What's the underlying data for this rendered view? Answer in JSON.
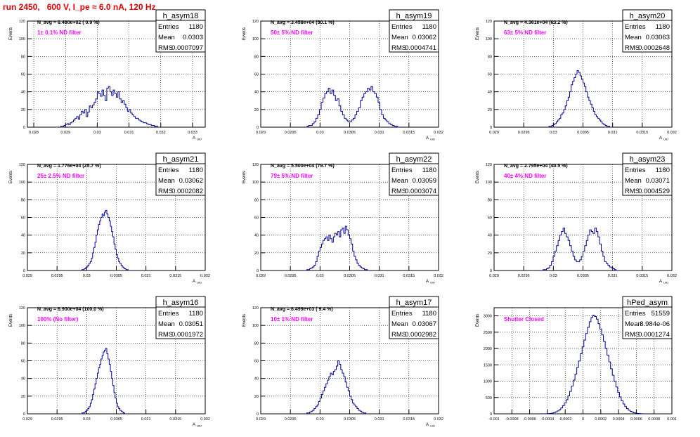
{
  "page": {
    "title": "run 2450,   600 V, I_pe ≈ 6.0 nA, 120 Hz",
    "title_color": "#dd0000",
    "annotation_color": "#ff00ff",
    "histogram_color": "#000099"
  },
  "chart_data": [
    {
      "type": "histogram",
      "name": "h_asym18",
      "ylabel": "Events",
      "xlabel_main": "A",
      "xlabel_sub": "UID",
      "ylim": [
        0,
        120
      ],
      "yticks": [
        "0",
        "20",
        "40",
        "60",
        "80",
        "100",
        "120"
      ],
      "xlim": [
        0.0278,
        0.0334
      ],
      "xticks": [
        "0.028",
        "0.029",
        "0.03",
        "0.031",
        "0.032",
        "0.033"
      ],
      "navg": "N_avg = 6.480e+02 ( 0.9 %)",
      "filter": "1± 0.1% ND filter",
      "stats": [
        [
          "Entries",
          "1180"
        ],
        [
          "Mean",
          "0.0303"
        ],
        [
          "RMS",
          "0.0007097"
        ]
      ],
      "bin_start": 0.0288,
      "bin_width": 5e-05,
      "counts": [
        0,
        1,
        1,
        2,
        3,
        4,
        3,
        5,
        6,
        8,
        10,
        12,
        9,
        14,
        18,
        16,
        20,
        12,
        17,
        24,
        22,
        25,
        28,
        32,
        40,
        38,
        35,
        42,
        36,
        30,
        44,
        46,
        40,
        36,
        42,
        38,
        34,
        40,
        32,
        28,
        30,
        26,
        22,
        18,
        20,
        16,
        14,
        12,
        10,
        10,
        8,
        7,
        6,
        5,
        5,
        4,
        3,
        3,
        2,
        2,
        1,
        1,
        0
      ]
    },
    {
      "type": "histogram",
      "name": "h_asym19",
      "ylabel": "Events",
      "xlabel_main": "A",
      "xlabel_sub": "UID",
      "ylim": [
        0,
        120
      ],
      "yticks": [
        "0",
        "20",
        "40",
        "60",
        "80",
        "100",
        "120"
      ],
      "xlim": [
        0.029,
        0.032
      ],
      "xticks": [
        "0.029",
        "0.0295",
        "0.03",
        "0.0305",
        "0.031",
        "0.0315",
        "0.032"
      ],
      "navg": "N_avg = 3.458e+04 (50.1 %)",
      "filter": "50± 5% ND filter",
      "stats": [
        [
          "Entries",
          "1180"
        ],
        [
          "Mean",
          "0.03062"
        ],
        [
          "RMS",
          "0.0004741"
        ]
      ],
      "bin_start": 0.02975,
      "bin_width": 3e-05,
      "counts": [
        0,
        1,
        2,
        2,
        4,
        6,
        10,
        14,
        20,
        28,
        33,
        38,
        40,
        44,
        38,
        42,
        36,
        30,
        32,
        24,
        18,
        14,
        10,
        8,
        6,
        6,
        8,
        10,
        14,
        18,
        22,
        30,
        34,
        38,
        40,
        44,
        42,
        46,
        40,
        38,
        34,
        28,
        20,
        14,
        10,
        8,
        6,
        4,
        3,
        2,
        1,
        1,
        0
      ]
    },
    {
      "type": "histogram",
      "name": "h_asym20",
      "ylabel": "Events",
      "xlabel_main": "A",
      "xlabel_sub": "UID",
      "ylim": [
        0,
        120
      ],
      "yticks": [
        "0",
        "20",
        "40",
        "60",
        "80",
        "100",
        "120"
      ],
      "xlim": [
        0.029,
        0.032
      ],
      "xticks": [
        "0.029",
        "0.0295",
        "0.03",
        "0.0305",
        "0.031",
        "0.0315",
        "0.032"
      ],
      "navg": "N_avg = 4.361e+04 (63.2 %)",
      "filter": "63± 5% ND filter",
      "stats": [
        [
          "Entries",
          "1180"
        ],
        [
          "Mean",
          "0.03063"
        ],
        [
          "RMS",
          "0.0002648"
        ]
      ],
      "bin_start": 0.0299,
      "bin_width": 2.5e-05,
      "counts": [
        0,
        1,
        1,
        2,
        3,
        4,
        6,
        8,
        10,
        14,
        16,
        20,
        24,
        30,
        34,
        40,
        48,
        52,
        56,
        60,
        64,
        62,
        58,
        54,
        50,
        46,
        40,
        34,
        30,
        26,
        22,
        18,
        14,
        12,
        10,
        8,
        6,
        4,
        3,
        2,
        1,
        1,
        0
      ]
    },
    {
      "type": "histogram",
      "name": "h_asym21",
      "ylabel": "Events",
      "xlabel_main": "A",
      "xlabel_sub": "UID",
      "ylim": [
        0,
        120
      ],
      "yticks": [
        "0",
        "20",
        "40",
        "60",
        "80",
        "100",
        "120"
      ],
      "xlim": [
        0.029,
        0.032
      ],
      "xticks": [
        "0.029",
        "0.0295",
        "0.03",
        "0.0305",
        "0.031",
        "0.0315",
        "0.032"
      ],
      "navg": "N_avg = 1.776e+04 (25.7 %)",
      "filter": "25± 2.5% ND filter",
      "stats": [
        [
          "Entries",
          "1180"
        ],
        [
          "Mean",
          "0.03062"
        ],
        [
          "RMS",
          "0.0002082"
        ]
      ],
      "bin_start": 0.0299,
      "bin_width": 2e-05,
      "counts": [
        0,
        1,
        1,
        2,
        3,
        4,
        6,
        8,
        10,
        14,
        20,
        26,
        32,
        40,
        46,
        52,
        56,
        60,
        64,
        62,
        66,
        68,
        64,
        60,
        56,
        50,
        44,
        38,
        30,
        24,
        18,
        14,
        10,
        8,
        6,
        4,
        3,
        2,
        1,
        1,
        0
      ]
    },
    {
      "type": "histogram",
      "name": "h_asym22",
      "ylabel": "Events",
      "xlabel_main": "A",
      "xlabel_sub": "UID",
      "ylim": [
        0,
        120
      ],
      "yticks": [
        "0",
        "20",
        "40",
        "60",
        "80",
        "100",
        "120"
      ],
      "xlim": [
        0.029,
        0.032
      ],
      "xticks": [
        "0.029",
        "0.0295",
        "0.03",
        "0.0305",
        "0.031",
        "0.0315",
        "0.032"
      ],
      "navg": "N_avg = 5.500e+04 (79.7 %)",
      "filter": "79± 5% ND filter",
      "stats": [
        [
          "Entries",
          "1180"
        ],
        [
          "Mean",
          "0.03059"
        ],
        [
          "RMS",
          "0.0003074"
        ]
      ],
      "bin_start": 0.02975,
      "bin_width": 2.5e-05,
      "counts": [
        0,
        1,
        1,
        2,
        3,
        4,
        6,
        10,
        16,
        22,
        26,
        30,
        34,
        36,
        38,
        34,
        40,
        36,
        32,
        38,
        42,
        40,
        44,
        38,
        46,
        48,
        42,
        50,
        46,
        40,
        36,
        30,
        22,
        16,
        12,
        8,
        6,
        4,
        3,
        2,
        1,
        1,
        0
      ]
    },
    {
      "type": "histogram",
      "name": "h_asym23",
      "ylabel": "Events",
      "xlabel_main": "A",
      "xlabel_sub": "UID",
      "ylim": [
        0,
        120
      ],
      "yticks": [
        "0",
        "20",
        "40",
        "60",
        "80",
        "100",
        "120"
      ],
      "xlim": [
        0.029,
        0.032
      ],
      "xticks": [
        "0.029",
        "0.0295",
        "0.03",
        "0.0305",
        "0.031",
        "0.0315",
        "0.032"
      ],
      "navg": "N_avg = 2.795e+04 (40.5 %)",
      "filter": "40± 4% ND filter",
      "stats": [
        [
          "Entries",
          "1180"
        ],
        [
          "Mean",
          "0.03071"
        ],
        [
          "RMS",
          "0.0004529"
        ]
      ],
      "bin_start": 0.0298,
      "bin_width": 2.8e-05,
      "counts": [
        0,
        1,
        1,
        2,
        3,
        6,
        10,
        16,
        22,
        28,
        34,
        40,
        44,
        48,
        42,
        38,
        34,
        28,
        22,
        16,
        12,
        10,
        10,
        12,
        16,
        22,
        28,
        34,
        40,
        46,
        44,
        42,
        48,
        44,
        38,
        30,
        22,
        16,
        10,
        8,
        6,
        4,
        3,
        2,
        1,
        0
      ]
    },
    {
      "type": "histogram",
      "name": "h_asym16",
      "ylabel": "Events",
      "xlabel_main": "A",
      "xlabel_sub": "UID",
      "ylim": [
        0,
        120
      ],
      "yticks": [
        "0",
        "20",
        "40",
        "60",
        "80",
        "100",
        "120"
      ],
      "xlim": [
        0.029,
        0.032
      ],
      "xticks": [
        "0.029",
        "0.0295",
        "0.03",
        "0.0305",
        "0.031",
        "0.0315",
        "0.032"
      ],
      "navg": "N_avg = 6.900e+04 (100.0 %)",
      "filter": "100% (No filter)",
      "stats": [
        [
          "Entries",
          "1180"
        ],
        [
          "Mean",
          "0.03051"
        ],
        [
          "RMS",
          "0.0001972"
        ]
      ],
      "bin_start": 0.0299,
      "bin_width": 2e-05,
      "counts": [
        0,
        1,
        1,
        2,
        3,
        4,
        6,
        8,
        12,
        16,
        22,
        28,
        34,
        40,
        46,
        52,
        56,
        62,
        66,
        70,
        72,
        74,
        68,
        62,
        56,
        48,
        40,
        32,
        24,
        18,
        12,
        8,
        6,
        4,
        3,
        2,
        1,
        0
      ]
    },
    {
      "type": "histogram",
      "name": "h_asym17",
      "ylabel": "Events",
      "xlabel_main": "A",
      "xlabel_sub": "UID",
      "ylim": [
        0,
        120
      ],
      "yticks": [
        "0",
        "20",
        "40",
        "60",
        "80",
        "100",
        "120"
      ],
      "xlim": [
        0.029,
        0.032
      ],
      "xticks": [
        "0.029",
        "0.0295",
        "0.03",
        "0.0305",
        "0.031",
        "0.0315",
        "0.032"
      ],
      "navg": "N_avg = 6.499e+03 ( 9.4 %)",
      "filter": "10± 1% ND filter",
      "stats": [
        [
          "Entries",
          "1180"
        ],
        [
          "Mean",
          "0.03067"
        ],
        [
          "RMS",
          "0.0002982"
        ]
      ],
      "bin_start": 0.02975,
      "bin_width": 2.5e-05,
      "counts": [
        0,
        1,
        1,
        2,
        3,
        4,
        6,
        8,
        10,
        14,
        18,
        22,
        26,
        30,
        34,
        38,
        42,
        46,
        44,
        48,
        50,
        54,
        60,
        56,
        50,
        46,
        42,
        36,
        30,
        26,
        20,
        16,
        12,
        10,
        8,
        6,
        4,
        3,
        2,
        1,
        1,
        0
      ]
    },
    {
      "type": "histogram",
      "name": "hPed_asym",
      "ylabel": "Events",
      "xlabel_main": "",
      "xlabel_sub": "",
      "ylim": [
        0,
        3250
      ],
      "yticks": [
        "0",
        "500",
        "1000",
        "1500",
        "2000",
        "2500",
        "3000"
      ],
      "xlim": [
        -0.001,
        0.001
      ],
      "xticks": [
        "-0.001",
        "-0.0008",
        "-0.0006",
        "-0.0004",
        "-0.0002",
        "0",
        "0.0002",
        "0.0004",
        "0.0006",
        "0.0008",
        "0.001"
      ],
      "navg": "",
      "filter": "Shutter Closed",
      "stats": [
        [
          "Entries",
          "51559"
        ],
        [
          "Mean",
          "8.984e-06"
        ],
        [
          "RMS",
          "0.0001274"
        ]
      ],
      "bin_start": -0.00045,
      "bin_width": 2e-05,
      "counts": [
        0,
        2,
        4,
        8,
        14,
        24,
        40,
        60,
        90,
        130,
        180,
        250,
        330,
        430,
        550,
        690,
        850,
        1030,
        1220,
        1420,
        1620,
        1840,
        2050,
        2260,
        2460,
        2650,
        2820,
        2950,
        3020,
        2980,
        2900,
        2760,
        2600,
        2420,
        2220,
        2010,
        1800,
        1590,
        1380,
        1180,
        990,
        820,
        660,
        520,
        400,
        300,
        220,
        160,
        110,
        74,
        48,
        30,
        18,
        10,
        6,
        3,
        1,
        0
      ]
    }
  ]
}
